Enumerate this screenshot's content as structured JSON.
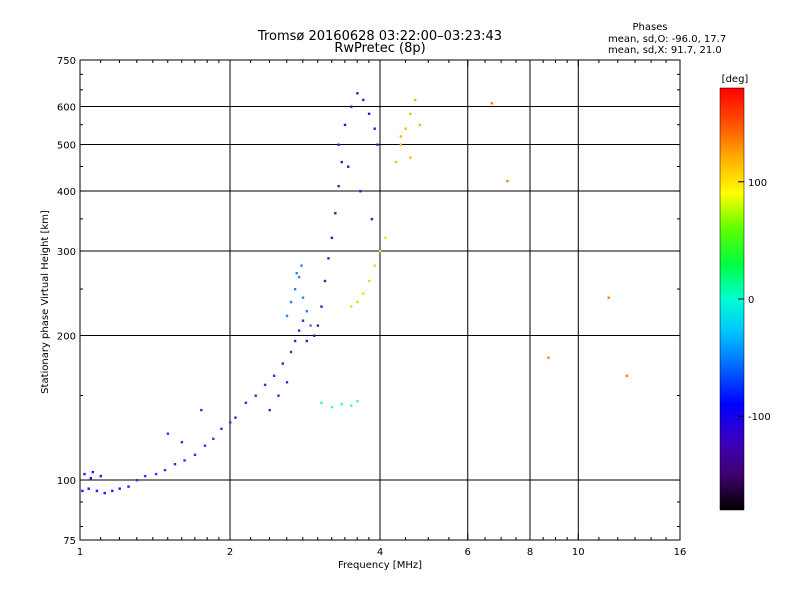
{
  "chart_data": {
    "type": "scatter",
    "title": "Tromsø 20160628 03:22:00–03:23:43",
    "subtitle": "RwPretec (8p)",
    "xlabel": "Frequency [MHz]",
    "ylabel": "Stationary phase Virtual Height [km]",
    "x_scale": "log",
    "y_scale": "log",
    "xlim": [
      1,
      16
    ],
    "ylim": [
      75,
      750
    ],
    "x_ticks": [
      1,
      2,
      4,
      6,
      8,
      10,
      16
    ],
    "y_ticks": [
      75,
      100,
      200,
      300,
      400,
      500,
      600,
      750
    ],
    "x_grid": [
      1,
      2,
      4,
      6,
      8,
      10,
      16
    ],
    "y_grid": [
      100,
      200,
      300,
      400,
      500,
      600
    ],
    "grid": true,
    "stats": {
      "header": "Phases",
      "o_line": "mean, sd,O: -96.0, 17.7",
      "x_line": "mean, sd,X:  91.7, 21.0"
    },
    "colorbar": {
      "label": "[deg]",
      "range": [
        -180,
        180
      ],
      "ticks": [
        100,
        0,
        -100
      ],
      "colors": [
        "#000000",
        "#400070",
        "#3a00c0",
        "#0000ff",
        "#0060ff",
        "#00c0ff",
        "#00ffd0",
        "#00ff40",
        "#60ff00",
        "#ffff00",
        "#ffb000",
        "#ff5000",
        "#ff0000"
      ]
    },
    "series": [
      {
        "color": "#1a1aff",
        "x": [
          1.01,
          1.04,
          1.08,
          1.12,
          1.16,
          1.2,
          1.25,
          1.02,
          1.06,
          1.1,
          1.05
        ],
        "y": [
          95,
          96,
          95,
          94,
          95,
          96,
          97,
          103,
          104,
          102,
          101
        ]
      },
      {
        "color": "#2a35e8",
        "x": [
          1.3,
          1.35,
          1.42,
          1.48,
          1.55,
          1.62,
          1.7,
          1.78,
          1.85,
          1.92,
          2.0,
          1.5,
          1.6,
          1.75
        ],
        "y": [
          100,
          102,
          103,
          105,
          108,
          110,
          113,
          118,
          122,
          128,
          132,
          125,
          120,
          140
        ]
      },
      {
        "color": "#3a2ad0",
        "x": [
          2.05,
          2.15,
          2.25,
          2.35,
          2.45,
          2.55,
          2.65,
          2.7,
          2.75,
          2.8,
          2.6,
          2.5,
          2.4
        ],
        "y": [
          135,
          145,
          150,
          158,
          165,
          175,
          185,
          195,
          205,
          215,
          160,
          150,
          140
        ]
      },
      {
        "color": "#2f7fff",
        "x": [
          2.6,
          2.65,
          2.7,
          2.75,
          2.8,
          2.85,
          2.9,
          2.72,
          2.78
        ],
        "y": [
          220,
          235,
          250,
          265,
          240,
          225,
          210,
          270,
          280
        ]
      },
      {
        "color": "#4a1aa0",
        "x": [
          2.85,
          2.95,
          3.0,
          3.05,
          3.1,
          3.15,
          3.2,
          3.25,
          3.3,
          3.35
        ],
        "y": [
          195,
          200,
          210,
          230,
          260,
          290,
          320,
          360,
          410,
          460
        ]
      },
      {
        "color": "#2a20d0",
        "x": [
          3.3,
          3.4,
          3.5,
          3.6,
          3.7,
          3.8,
          3.9,
          3.95,
          3.45,
          3.65,
          3.85
        ],
        "y": [
          500,
          550,
          600,
          640,
          620,
          580,
          540,
          500,
          450,
          400,
          350
        ]
      },
      {
        "color": "#40ff9a",
        "x": [
          3.05,
          3.2,
          3.35,
          3.5,
          3.6
        ],
        "y": [
          145,
          142,
          144,
          143,
          146
        ]
      },
      {
        "color": "#e6e000",
        "x": [
          3.5,
          3.6,
          3.7,
          3.8,
          3.9,
          4.0,
          4.1
        ],
        "y": [
          230,
          235,
          245,
          260,
          280,
          300,
          320
        ]
      },
      {
        "color": "#f0c000",
        "x": [
          4.3,
          4.4,
          4.5,
          4.6,
          4.7,
          4.8,
          4.4,
          4.6
        ],
        "y": [
          460,
          500,
          540,
          580,
          620,
          550,
          520,
          470
        ]
      },
      {
        "color": "#ff8000",
        "x": [
          6.7,
          7.2,
          8.7,
          11.5,
          12.5
        ],
        "y": [
          610,
          420,
          180,
          240,
          165
        ]
      }
    ]
  }
}
